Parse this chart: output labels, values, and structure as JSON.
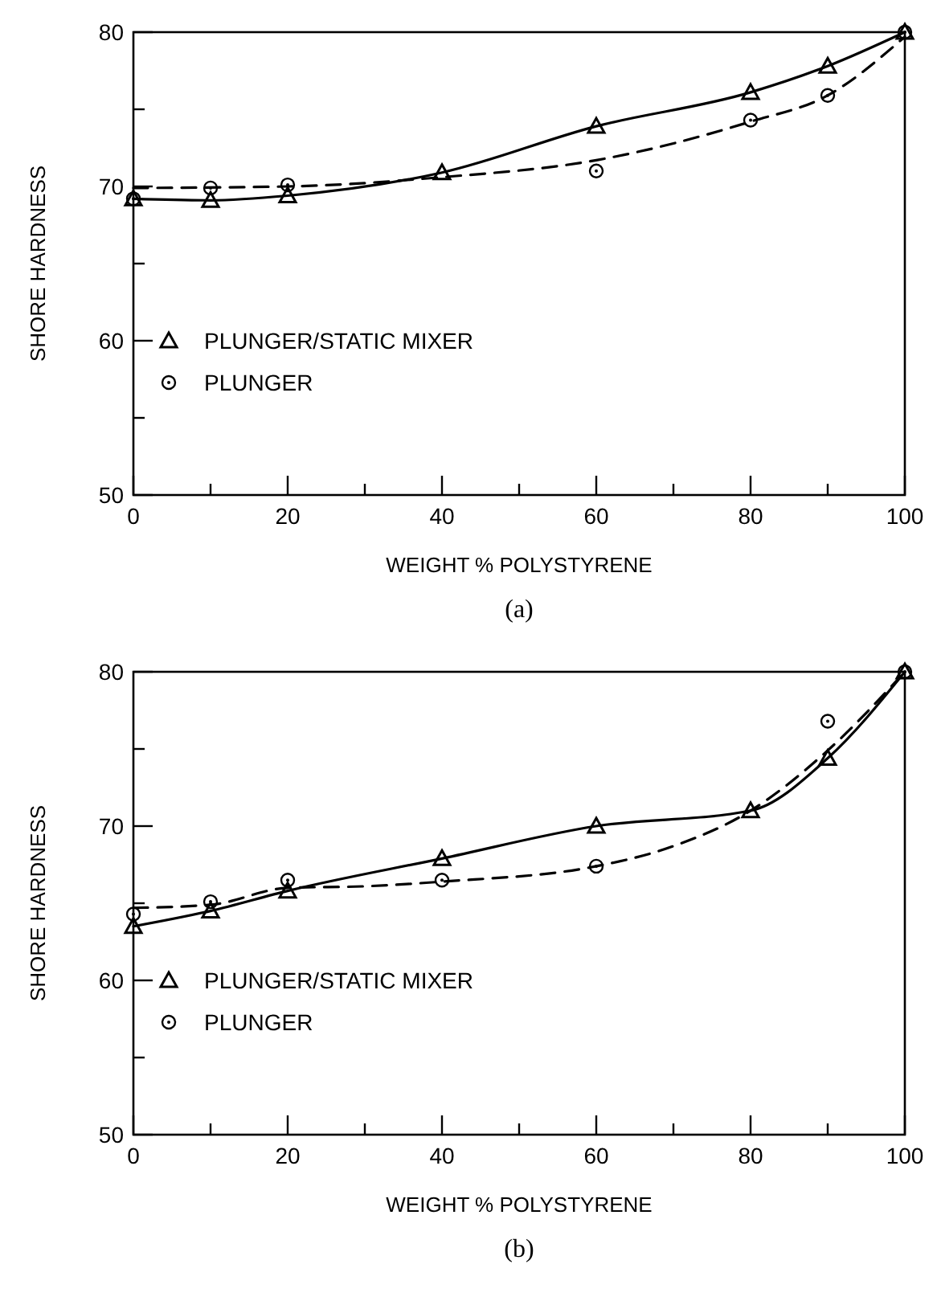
{
  "chart_data": [
    {
      "type": "line",
      "title": "(a)",
      "xlabel": "WEIGHT % POLYSTYRENE",
      "ylabel": "SHORE HARDNESS",
      "xlim": [
        0,
        100
      ],
      "ylim": [
        50,
        80
      ],
      "xticks": [
        0,
        {
          "value": 10,
          "label": null
        },
        20,
        {
          "value": 30,
          "label": null
        },
        40,
        {
          "value": 50,
          "label": null
        },
        60,
        {
          "value": 70,
          "label": null
        },
        80,
        {
          "value": 90,
          "label": null
        },
        100
      ],
      "yticks": [
        50,
        {
          "value": 55,
          "label": null
        },
        60,
        {
          "value": 65,
          "label": null
        },
        70,
        {
          "value": 75,
          "label": null
        },
        80
      ],
      "legend": "left",
      "grid": false,
      "series": [
        {
          "type": "line",
          "name": "PLUNGER/STATIC MIXER",
          "color": "#000000",
          "marker": "triangle",
          "line_style": "solid",
          "x": [
            0,
            10,
            20,
            40,
            60,
            80,
            90,
            100
          ],
          "values": [
            69.2,
            69.1,
            69.4,
            70.9,
            73.9,
            76.1,
            77.8,
            80
          ]
        },
        {
          "type": "scatter",
          "name": "PLUNGER",
          "color": "#000000",
          "marker": "circle",
          "x": [
            0,
            10,
            20,
            60,
            80,
            90,
            100
          ],
          "values": [
            69.2,
            69.9,
            70.1,
            71.0,
            74.3,
            75.9,
            80
          ]
        },
        {
          "type": "line",
          "color": "#000000",
          "marker": "none",
          "line_style": "dashed",
          "x": [
            0,
            20,
            40,
            60,
            80,
            90,
            100
          ],
          "values": [
            69.9,
            70.0,
            70.6,
            71.7,
            74.2,
            75.9,
            79.7
          ]
        }
      ]
    },
    {
      "type": "line",
      "title": "(b)",
      "xlabel": "WEIGHT % POLYSTYRENE",
      "ylabel": "SHORE HARDNESS",
      "xlim": [
        0,
        100
      ],
      "ylim": [
        50,
        80
      ],
      "xticks": [
        0,
        {
          "value": 10,
          "label": null
        },
        20,
        {
          "value": 30,
          "label": null
        },
        40,
        {
          "value": 50,
          "label": null
        },
        60,
        {
          "value": 70,
          "label": null
        },
        80,
        {
          "value": 90,
          "label": null
        },
        100
      ],
      "yticks": [
        50,
        {
          "value": 55,
          "label": null
        },
        60,
        {
          "value": 65,
          "label": null
        },
        70,
        {
          "value": 75,
          "label": null
        },
        80
      ],
      "legend": "left",
      "grid": false,
      "series": [
        {
          "type": "line",
          "name": "PLUNGER/STATIC MIXER",
          "color": "#000000",
          "marker": "triangle",
          "line_style": "solid",
          "x": [
            0,
            10,
            20,
            40,
            60,
            80,
            90,
            100
          ],
          "values": [
            63.5,
            64.5,
            65.8,
            67.9,
            70.0,
            71.0,
            74.4,
            80
          ]
        },
        {
          "type": "scatter",
          "name": "PLUNGER",
          "color": "#000000",
          "marker": "circle",
          "x": [
            0,
            10,
            20,
            40,
            60,
            90,
            100
          ],
          "values": [
            64.3,
            65.1,
            66.5,
            66.5,
            67.4,
            76.8,
            80
          ]
        },
        {
          "type": "line",
          "color": "#000000",
          "marker": "none",
          "line_style": "dashed",
          "x": [
            0,
            10,
            20,
            30,
            40,
            60,
            70,
            80,
            90,
            100
          ],
          "values": [
            64.7,
            64.9,
            66.0,
            66.1,
            66.4,
            67.4,
            68.7,
            71.0,
            74.9,
            80
          ]
        }
      ]
    }
  ]
}
